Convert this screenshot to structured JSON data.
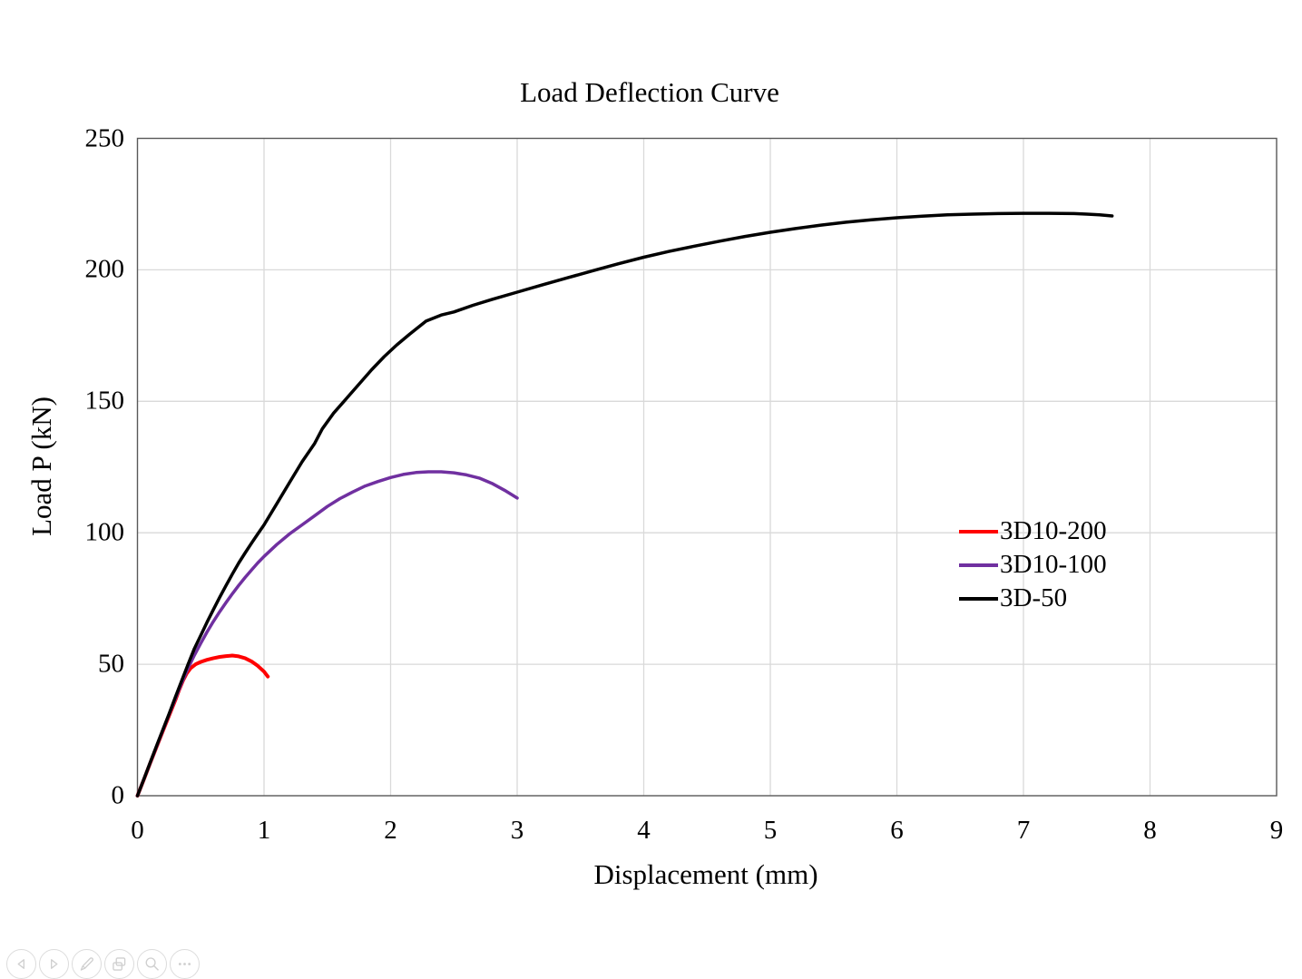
{
  "chart_data": {
    "type": "line",
    "title": "Load Deflection Curve",
    "xlabel": "Displacement (mm)",
    "ylabel": "Load P (kN)",
    "xlim": [
      0,
      9
    ],
    "ylim": [
      0,
      250
    ],
    "x_ticks": [
      "0",
      "1",
      "2",
      "3",
      "4",
      "5",
      "6",
      "7",
      "8",
      "9"
    ],
    "y_ticks": [
      "0",
      "50",
      "100",
      "150",
      "200",
      "250"
    ],
    "grid": true,
    "grid_color": "#d9d9d9",
    "border_color": "#595959",
    "legend_position": "middle-right",
    "series": [
      {
        "name": "3D10-200",
        "color": "#ff0000",
        "stroke_width": 4,
        "points": [
          [
            0,
            0
          ],
          [
            0.05,
            6.1
          ],
          [
            0.1,
            12.3
          ],
          [
            0.15,
            18.4
          ],
          [
            0.2,
            24.5
          ],
          [
            0.25,
            30.5
          ],
          [
            0.3,
            36.4
          ],
          [
            0.33,
            40.3
          ],
          [
            0.36,
            43.8
          ],
          [
            0.39,
            46.6
          ],
          [
            0.42,
            48.5
          ],
          [
            0.46,
            50
          ],
          [
            0.5,
            50.9
          ],
          [
            0.55,
            51.7
          ],
          [
            0.6,
            52.3
          ],
          [
            0.65,
            52.8
          ],
          [
            0.7,
            53.1
          ],
          [
            0.75,
            53.3
          ],
          [
            0.8,
            53
          ],
          [
            0.85,
            52.3
          ],
          [
            0.9,
            51.1
          ],
          [
            0.95,
            49.4
          ],
          [
            1.0,
            47.2
          ],
          [
            1.03,
            45.3
          ]
        ]
      },
      {
        "name": "3D10-100",
        "color": "#7030a0",
        "stroke_width": 3.5,
        "points": [
          [
            0,
            0
          ],
          [
            0.05,
            6.2
          ],
          [
            0.1,
            12.4
          ],
          [
            0.15,
            18.6
          ],
          [
            0.2,
            24.8
          ],
          [
            0.25,
            31
          ],
          [
            0.3,
            37
          ],
          [
            0.35,
            43
          ],
          [
            0.4,
            48.5
          ],
          [
            0.45,
            53.5
          ],
          [
            0.5,
            58
          ],
          [
            0.55,
            62.3
          ],
          [
            0.6,
            66.3
          ],
          [
            0.65,
            70
          ],
          [
            0.7,
            73.5
          ],
          [
            0.75,
            76.8
          ],
          [
            0.8,
            80
          ],
          [
            0.85,
            83
          ],
          [
            0.9,
            85.8
          ],
          [
            0.95,
            88.5
          ],
          [
            1.0,
            91
          ],
          [
            1.1,
            95.5
          ],
          [
            1.2,
            99.5
          ],
          [
            1.3,
            103
          ],
          [
            1.4,
            106.5
          ],
          [
            1.5,
            110
          ],
          [
            1.6,
            113
          ],
          [
            1.7,
            115.5
          ],
          [
            1.8,
            117.8
          ],
          [
            1.9,
            119.5
          ],
          [
            2.0,
            121
          ],
          [
            2.1,
            122.2
          ],
          [
            2.2,
            122.9
          ],
          [
            2.3,
            123.2
          ],
          [
            2.4,
            123.2
          ],
          [
            2.5,
            122.8
          ],
          [
            2.6,
            122
          ],
          [
            2.7,
            120.8
          ],
          [
            2.8,
            118.8
          ],
          [
            2.9,
            116.2
          ],
          [
            3.0,
            113.2
          ]
        ]
      },
      {
        "name": "3D-50",
        "color": "#000000",
        "stroke_width": 3.5,
        "points": [
          [
            0,
            0
          ],
          [
            0.05,
            6.2
          ],
          [
            0.1,
            12.5
          ],
          [
            0.15,
            18.8
          ],
          [
            0.2,
            25
          ],
          [
            0.25,
            31.2
          ],
          [
            0.3,
            37.5
          ],
          [
            0.35,
            43.8
          ],
          [
            0.4,
            50
          ],
          [
            0.45,
            56
          ],
          [
            0.5,
            61
          ],
          [
            0.55,
            66
          ],
          [
            0.6,
            70.8
          ],
          [
            0.65,
            75.5
          ],
          [
            0.7,
            80
          ],
          [
            0.75,
            84.3
          ],
          [
            0.8,
            88.5
          ],
          [
            0.85,
            92.3
          ],
          [
            0.9,
            96
          ],
          [
            0.95,
            99.5
          ],
          [
            1.0,
            103
          ],
          [
            1.1,
            111
          ],
          [
            1.2,
            119
          ],
          [
            1.3,
            127
          ],
          [
            1.4,
            134
          ],
          [
            1.46,
            139.5
          ],
          [
            1.55,
            145.5
          ],
          [
            1.65,
            151
          ],
          [
            1.75,
            156.5
          ],
          [
            1.85,
            162
          ],
          [
            1.95,
            167
          ],
          [
            2.05,
            171.5
          ],
          [
            2.15,
            175.5
          ],
          [
            2.28,
            180.5
          ],
          [
            2.4,
            182.8
          ],
          [
            2.5,
            184
          ],
          [
            2.65,
            186.5
          ],
          [
            2.8,
            188.7
          ],
          [
            3.0,
            191.5
          ],
          [
            3.2,
            194.3
          ],
          [
            3.4,
            197
          ],
          [
            3.6,
            199.7
          ],
          [
            3.8,
            202.3
          ],
          [
            4.0,
            204.8
          ],
          [
            4.2,
            207
          ],
          [
            4.4,
            209
          ],
          [
            4.6,
            210.9
          ],
          [
            4.8,
            212.7
          ],
          [
            5.0,
            214.3
          ],
          [
            5.2,
            215.7
          ],
          [
            5.4,
            217
          ],
          [
            5.6,
            218.1
          ],
          [
            5.8,
            219
          ],
          [
            6.0,
            219.8
          ],
          [
            6.2,
            220.4
          ],
          [
            6.4,
            220.9
          ],
          [
            6.6,
            221.2
          ],
          [
            6.8,
            221.4
          ],
          [
            7.0,
            221.5
          ],
          [
            7.2,
            221.5
          ],
          [
            7.4,
            221.4
          ],
          [
            7.5,
            221.2
          ],
          [
            7.6,
            220.9
          ],
          [
            7.7,
            220.5
          ]
        ]
      }
    ]
  },
  "toolbar": {
    "buttons": [
      {
        "icon": "back-arrow-icon"
      },
      {
        "icon": "forward-arrow-icon"
      },
      {
        "icon": "pencil-icon"
      },
      {
        "icon": "copy-slides-icon"
      },
      {
        "icon": "magnifier-icon"
      },
      {
        "icon": "ellipsis-icon"
      }
    ]
  }
}
